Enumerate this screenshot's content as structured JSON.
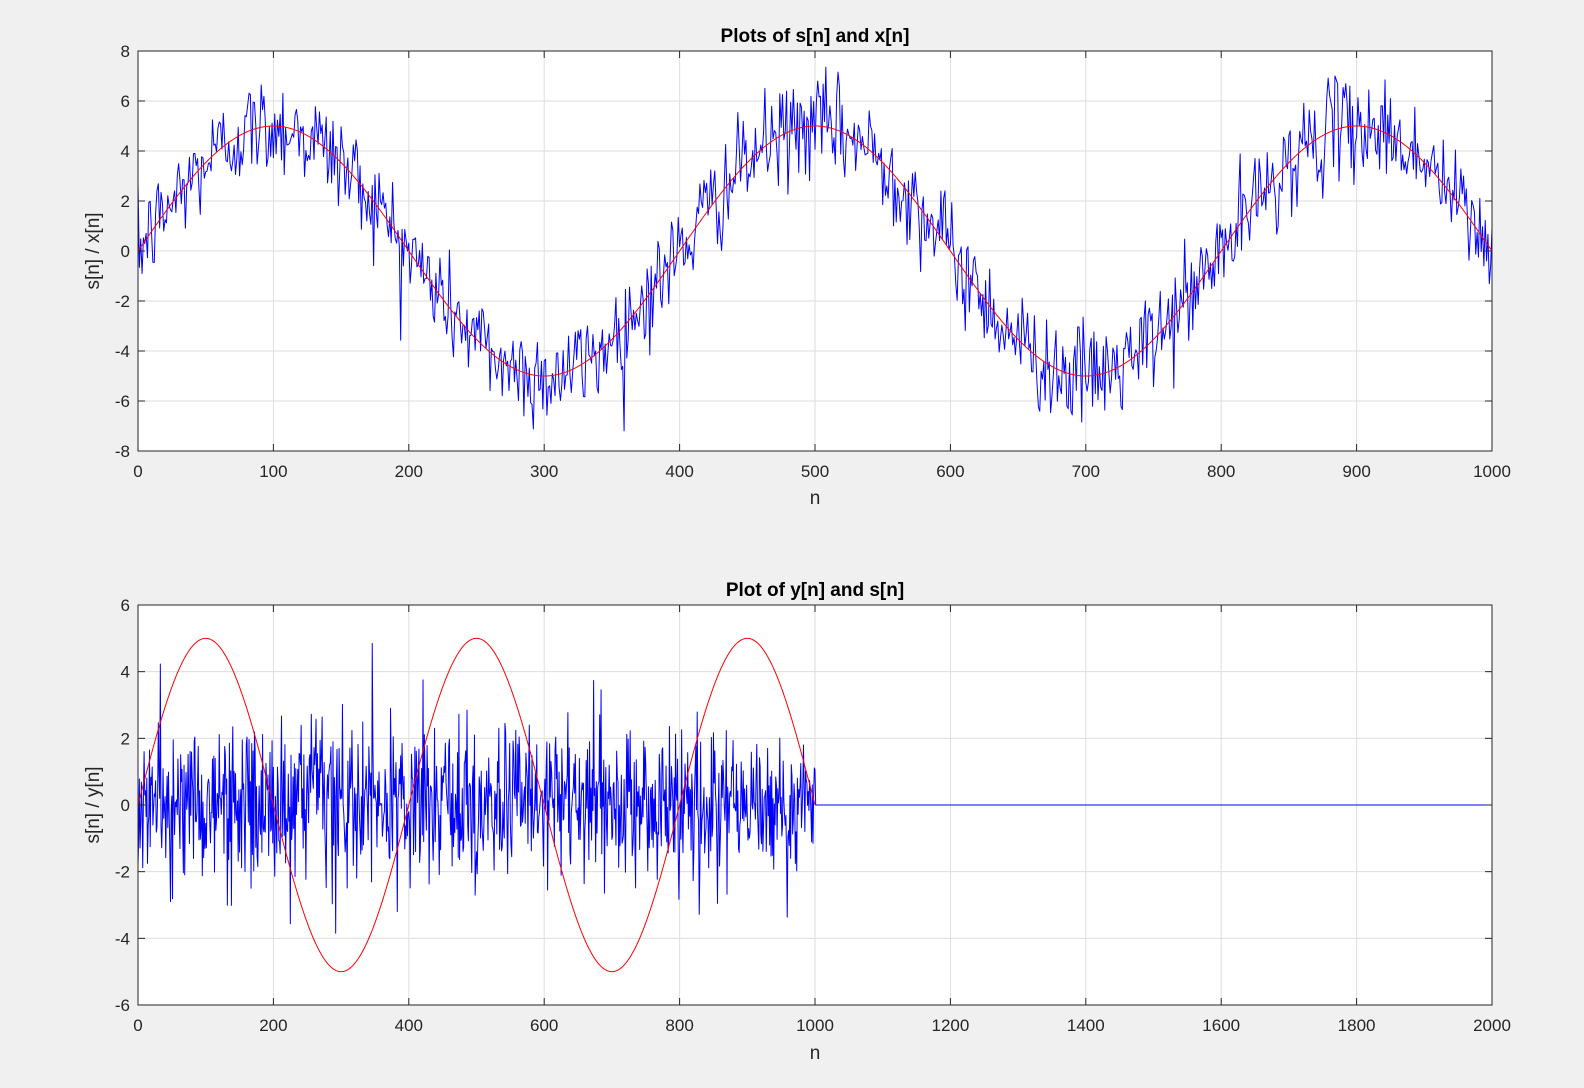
{
  "figure": {
    "background": "#f0f0f0",
    "axes_background": "#ffffff"
  },
  "chart_data": [
    {
      "type": "line",
      "title": "Plots of s[n] and x[n]",
      "xlabel": "n",
      "ylabel": "s[n] / x[n]",
      "xlim": [
        0,
        1000
      ],
      "ylim": [
        -8,
        8
      ],
      "xticks": [
        0,
        100,
        200,
        300,
        400,
        500,
        600,
        700,
        800,
        900,
        1000
      ],
      "yticks": [
        -8,
        -6,
        -4,
        -2,
        0,
        2,
        4,
        6,
        8
      ],
      "grid": true,
      "series": [
        {
          "kind": "noisy_sine",
          "color": "#0000ff",
          "amplitude": 5,
          "period": 400,
          "n_start": 0,
          "n_end": 1000,
          "noise_std": 1.0
        },
        {
          "kind": "sine",
          "color": "#ff0000",
          "amplitude": 5,
          "period": 400,
          "n_start": 0,
          "n_end": 1000
        }
      ]
    },
    {
      "type": "line",
      "title": "Plot of y[n] and s[n]",
      "xlabel": "n",
      "ylabel": "s[n] / y[n]",
      "xlim": [
        0,
        2000
      ],
      "ylim": [
        -6,
        6
      ],
      "xticks": [
        0,
        200,
        400,
        600,
        800,
        1000,
        1200,
        1400,
        1600,
        1800,
        2000
      ],
      "yticks": [
        -6,
        -4,
        -2,
        0,
        2,
        4,
        6
      ],
      "grid": true,
      "series": [
        {
          "kind": "noise",
          "color": "#0000ff",
          "n_start": 0,
          "n_end": 1000,
          "noise_std": 1.2,
          "zero_until": 2000
        },
        {
          "kind": "sine",
          "color": "#ff0000",
          "amplitude": 5,
          "period": 400,
          "n_start": 0,
          "n_end": 1000
        }
      ]
    }
  ]
}
